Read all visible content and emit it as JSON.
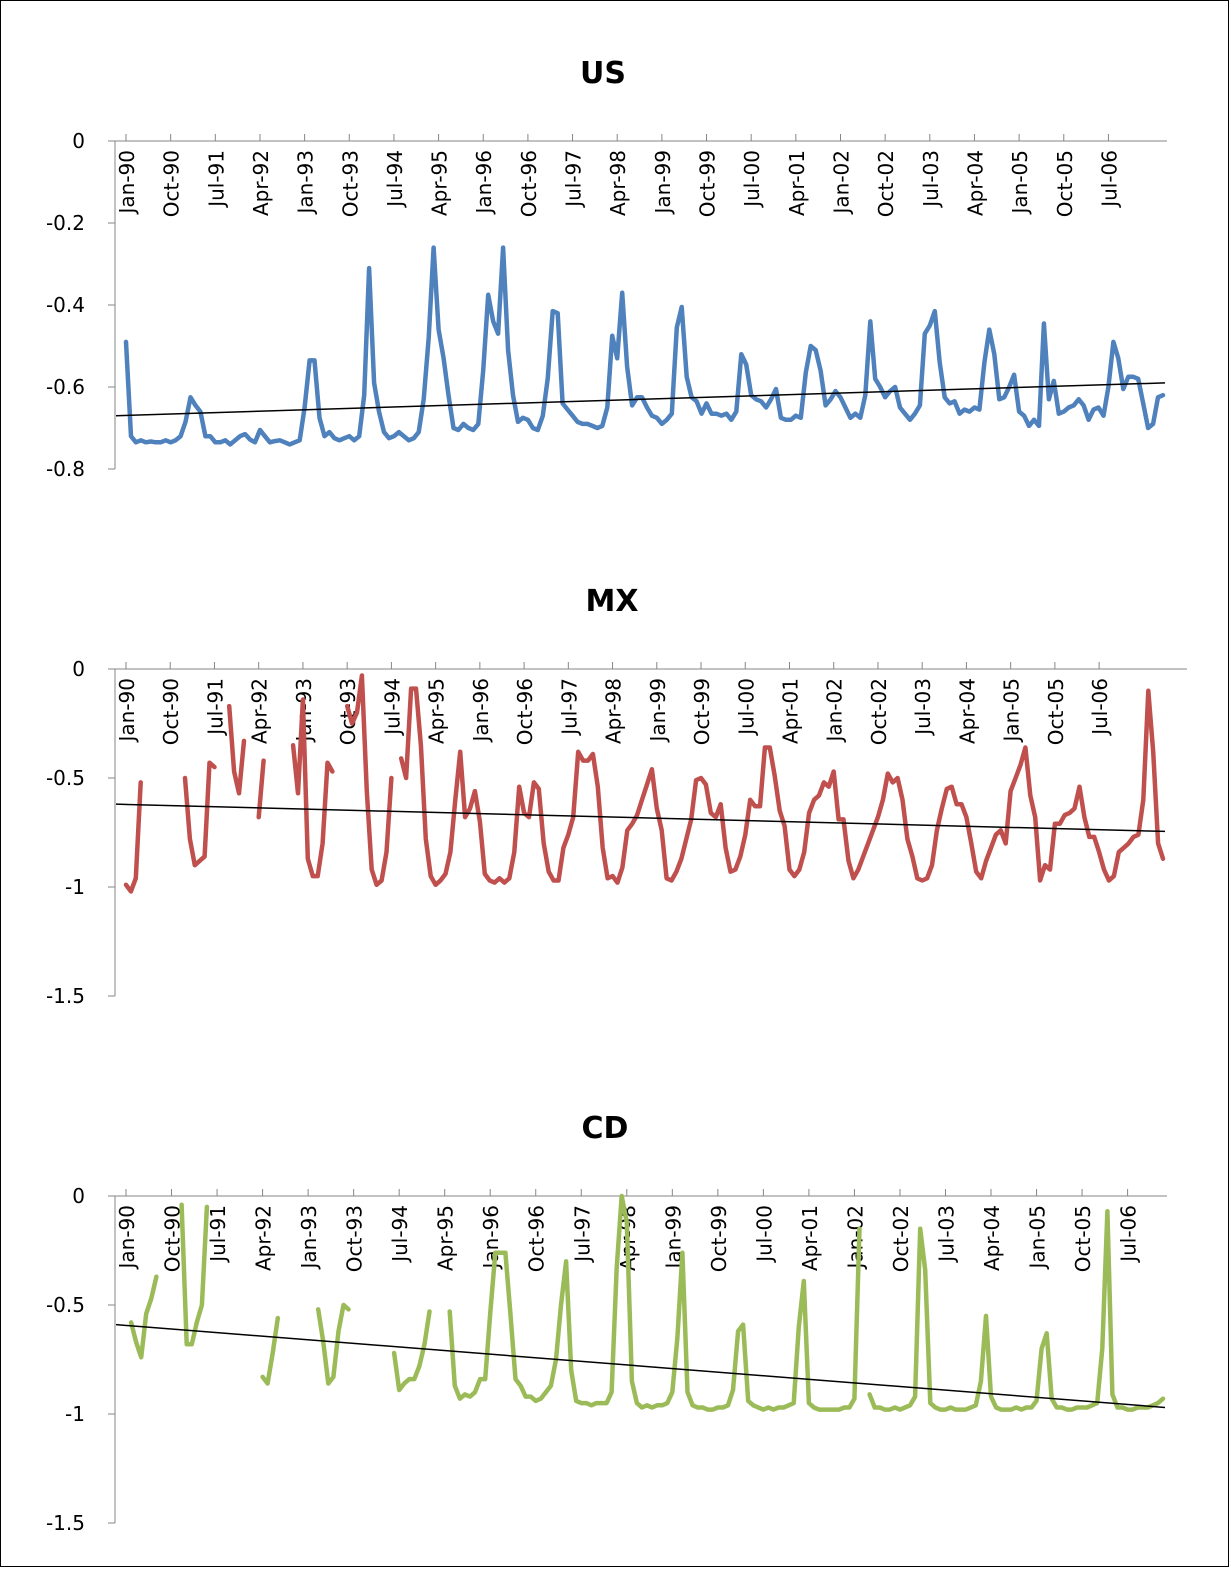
{
  "x_labels": [
    "Jan-90",
    "Oct-90",
    "Jul-91",
    "Apr-92",
    "Jan-93",
    "Oct-93",
    "Jul-94",
    "Apr-95",
    "Jan-96",
    "Oct-96",
    "Jul-97",
    "Apr-98",
    "Jan-99",
    "Oct-99",
    "Jul-00",
    "Apr-01",
    "Jan-02",
    "Oct-02",
    "Jul-03",
    "Apr-04",
    "Jan-05",
    "Oct-05",
    "Jul-06"
  ],
  "chart_data": [
    {
      "type": "line",
      "title": "US",
      "color": "#4F81BD",
      "ylim": [
        -0.8,
        0
      ],
      "yticks": [
        0,
        -0.2,
        -0.4,
        -0.6,
        -0.8
      ],
      "ytick_labels": [
        "0",
        "-0.2",
        "-0.4",
        "-0.6",
        "-0.8"
      ],
      "x_range": [
        "Jan-90",
        "Dec-06"
      ],
      "trend": [
        -0.67,
        -0.59
      ],
      "values": [
        -0.49,
        -0.72,
        -0.735,
        -0.73,
        -0.735,
        -0.733,
        -0.735,
        -0.735,
        -0.73,
        -0.735,
        -0.73,
        -0.72,
        -0.685,
        -0.625,
        -0.645,
        -0.66,
        -0.72,
        -0.72,
        -0.735,
        -0.735,
        -0.73,
        -0.74,
        -0.73,
        -0.72,
        -0.715,
        -0.728,
        -0.735,
        -0.705,
        -0.72,
        -0.735,
        -0.732,
        -0.73,
        -0.735,
        -0.74,
        -0.735,
        -0.73,
        -0.65,
        -0.535,
        -0.535,
        -0.675,
        -0.72,
        -0.71,
        -0.725,
        -0.73,
        -0.725,
        -0.72,
        -0.73,
        -0.72,
        -0.62,
        -0.31,
        -0.59,
        -0.66,
        -0.71,
        -0.725,
        -0.72,
        -0.71,
        -0.72,
        -0.73,
        -0.725,
        -0.71,
        -0.63,
        -0.48,
        -0.26,
        -0.46,
        -0.53,
        -0.62,
        -0.7,
        -0.705,
        -0.69,
        -0.7,
        -0.705,
        -0.69,
        -0.56,
        -0.375,
        -0.44,
        -0.47,
        -0.26,
        -0.51,
        -0.62,
        -0.685,
        -0.675,
        -0.68,
        -0.7,
        -0.705,
        -0.67,
        -0.58,
        -0.415,
        -0.42,
        -0.64,
        -0.655,
        -0.67,
        -0.685,
        -0.69,
        -0.69,
        -0.695,
        -0.7,
        -0.695,
        -0.65,
        -0.475,
        -0.53,
        -0.37,
        -0.55,
        -0.645,
        -0.625,
        -0.625,
        -0.65,
        -0.67,
        -0.675,
        -0.69,
        -0.68,
        -0.665,
        -0.455,
        -0.405,
        -0.575,
        -0.625,
        -0.635,
        -0.665,
        -0.64,
        -0.665,
        -0.665,
        -0.67,
        -0.665,
        -0.68,
        -0.66,
        -0.52,
        -0.545,
        -0.62,
        -0.63,
        -0.635,
        -0.65,
        -0.63,
        -0.605,
        -0.675,
        -0.68,
        -0.68,
        -0.67,
        -0.675,
        -0.565,
        -0.5,
        -0.51,
        -0.56,
        -0.645,
        -0.63,
        -0.61,
        -0.625,
        -0.65,
        -0.675,
        -0.665,
        -0.675,
        -0.62,
        -0.44,
        -0.58,
        -0.6,
        -0.625,
        -0.61,
        -0.6,
        -0.65,
        -0.665,
        -0.68,
        -0.665,
        -0.645,
        -0.47,
        -0.45,
        -0.415,
        -0.54,
        -0.625,
        -0.64,
        -0.635,
        -0.665,
        -0.655,
        -0.66,
        -0.65,
        -0.655,
        -0.54,
        -0.46,
        -0.52,
        -0.63,
        -0.625,
        -0.6,
        -0.57,
        -0.66,
        -0.67,
        -0.695,
        -0.68,
        -0.695,
        -0.445,
        -0.63,
        -0.585,
        -0.665,
        -0.66,
        -0.65,
        -0.645,
        -0.63,
        -0.645,
        -0.68,
        -0.655,
        -0.65,
        -0.67,
        -0.6,
        -0.49,
        -0.53,
        -0.605,
        -0.575,
        -0.575,
        -0.58,
        -0.64,
        -0.7,
        -0.69,
        -0.625,
        -0.62
      ]
    },
    {
      "type": "line",
      "title": "MX",
      "color": "#C0504D",
      "ylim": [
        -1.5,
        0
      ],
      "yticks": [
        0,
        -0.5,
        -1,
        -1.5
      ],
      "ytick_labels": [
        "0",
        "-0.5",
        "-1",
        "-1.5"
      ],
      "x_range": [
        "Jan-90",
        "Dec-06"
      ],
      "trend": [
        -0.62,
        -0.745
      ],
      "values": [
        -0.99,
        -1.02,
        -0.96,
        -0.52,
        null,
        null,
        null,
        null,
        null,
        null,
        null,
        null,
        -0.5,
        -0.78,
        -0.9,
        -0.88,
        -0.86,
        -0.43,
        -0.45,
        null,
        null,
        -0.17,
        -0.47,
        -0.57,
        -0.33,
        null,
        null,
        -0.68,
        -0.42,
        null,
        null,
        null,
        -0.15,
        null,
        -0.35,
        -0.57,
        -0.14,
        -0.87,
        -0.95,
        -0.95,
        -0.8,
        -0.43,
        -0.47,
        null,
        null,
        -0.17,
        -0.25,
        -0.2,
        -0.03,
        -0.56,
        -0.92,
        -0.99,
        -0.97,
        -0.84,
        -0.5,
        null,
        -0.41,
        -0.5,
        -0.09,
        -0.09,
        -0.35,
        -0.78,
        -0.95,
        -0.99,
        -0.97,
        -0.94,
        -0.84,
        -0.6,
        -0.38,
        -0.68,
        -0.64,
        -0.56,
        -0.7,
        -0.94,
        -0.97,
        -0.98,
        -0.96,
        -0.98,
        -0.96,
        -0.84,
        -0.54,
        -0.66,
        -0.68,
        -0.52,
        -0.55,
        -0.8,
        -0.93,
        -0.97,
        -0.97,
        -0.82,
        -0.76,
        -0.68,
        -0.38,
        -0.42,
        -0.42,
        -0.39,
        -0.54,
        -0.82,
        -0.96,
        -0.95,
        -0.98,
        -0.91,
        -0.74,
        -0.71,
        -0.67,
        -0.6,
        -0.53,
        -0.46,
        -0.64,
        -0.74,
        -0.96,
        -0.97,
        -0.93,
        -0.87,
        -0.78,
        -0.69,
        -0.51,
        -0.5,
        -0.53,
        -0.66,
        -0.68,
        -0.62,
        -0.82,
        -0.93,
        -0.92,
        -0.86,
        -0.76,
        -0.6,
        -0.63,
        -0.63,
        -0.36,
        -0.36,
        -0.49,
        -0.65,
        -0.72,
        -0.92,
        -0.95,
        -0.92,
        -0.84,
        -0.66,
        -0.6,
        -0.58,
        -0.52,
        -0.54,
        -0.47,
        -0.69,
        -0.69,
        -0.88,
        -0.96,
        -0.92,
        -0.86,
        -0.8,
        -0.74,
        -0.68,
        -0.6,
        -0.48,
        -0.52,
        -0.5,
        -0.6,
        -0.78,
        -0.86,
        -0.96,
        -0.97,
        -0.96,
        -0.9,
        -0.74,
        -0.64,
        -0.55,
        -0.54,
        -0.62,
        -0.62,
        -0.68,
        -0.8,
        -0.93,
        -0.96,
        -0.88,
        -0.82,
        -0.76,
        -0.74,
        -0.8,
        -0.56,
        -0.5,
        -0.44,
        -0.36,
        -0.58,
        -0.68,
        -0.97,
        -0.9,
        -0.92,
        -0.71,
        -0.71,
        -0.67,
        -0.66,
        -0.64,
        -0.54,
        -0.68,
        -0.77,
        -0.77,
        -0.84,
        -0.92,
        -0.97,
        -0.95,
        -0.84,
        -0.82,
        -0.8,
        -0.77,
        -0.76,
        -0.6,
        -0.1,
        -0.38,
        -0.8,
        -0.87
      ]
    },
    {
      "type": "line",
      "title": "CD",
      "color": "#9BBB59",
      "ylim": [
        -1.5,
        0
      ],
      "yticks": [
        0,
        -0.5,
        -1,
        -1.5
      ],
      "ytick_labels": [
        "0",
        "-0.5",
        "-1",
        "-1.5"
      ],
      "x_range": [
        "Jan-90",
        "Dec-06"
      ],
      "trend": [
        -0.59,
        -0.97
      ],
      "values": [
        null,
        -0.58,
        -0.67,
        -0.74,
        -0.54,
        -0.47,
        -0.37,
        null,
        null,
        null,
        null,
        -0.04,
        -0.68,
        -0.68,
        -0.58,
        -0.5,
        -0.05,
        null,
        null,
        null,
        null,
        null,
        null,
        null,
        null,
        null,
        null,
        -0.83,
        -0.86,
        -0.72,
        -0.56,
        null,
        null,
        null,
        null,
        null,
        null,
        null,
        -0.52,
        -0.67,
        -0.86,
        -0.83,
        -0.62,
        -0.5,
        -0.52,
        null,
        null,
        null,
        null,
        null,
        null,
        null,
        null,
        -0.72,
        -0.89,
        -0.86,
        -0.84,
        -0.84,
        -0.78,
        -0.68,
        -0.53,
        null,
        null,
        null,
        -0.53,
        -0.87,
        -0.93,
        -0.91,
        -0.92,
        -0.9,
        -0.84,
        -0.84,
        -0.54,
        -0.26,
        -0.26,
        -0.26,
        -0.54,
        -0.84,
        -0.87,
        -0.92,
        -0.92,
        -0.94,
        -0.93,
        -0.9,
        -0.87,
        -0.75,
        -0.5,
        -0.3,
        -0.8,
        -0.94,
        -0.95,
        -0.95,
        -0.96,
        -0.95,
        -0.95,
        -0.95,
        -0.9,
        -0.33,
        -0.0,
        -0.12,
        -0.85,
        -0.95,
        -0.97,
        -0.96,
        -0.97,
        -0.96,
        -0.96,
        -0.95,
        -0.9,
        -0.65,
        -0.26,
        -0.9,
        -0.96,
        -0.97,
        -0.97,
        -0.98,
        -0.98,
        -0.97,
        -0.97,
        -0.96,
        -0.89,
        -0.62,
        -0.59,
        -0.94,
        -0.96,
        -0.97,
        -0.98,
        -0.97,
        -0.98,
        -0.97,
        -0.97,
        -0.96,
        -0.95,
        -0.6,
        -0.39,
        -0.95,
        -0.97,
        -0.98,
        -0.98,
        -0.98,
        -0.98,
        -0.98,
        -0.97,
        -0.97,
        -0.93,
        -0.15,
        null,
        -0.91,
        -0.97,
        -0.97,
        -0.98,
        -0.98,
        -0.97,
        -0.98,
        -0.97,
        -0.96,
        -0.92,
        -0.15,
        -0.34,
        -0.95,
        -0.97,
        -0.98,
        -0.98,
        -0.97,
        -0.98,
        -0.98,
        -0.98,
        -0.97,
        -0.96,
        -0.85,
        -0.55,
        -0.92,
        -0.97,
        -0.98,
        -0.98,
        -0.98,
        -0.97,
        -0.98,
        -0.97,
        -0.97,
        -0.94,
        -0.7,
        -0.63,
        -0.93,
        -0.97,
        -0.97,
        -0.98,
        -0.98,
        -0.97,
        -0.97,
        -0.97,
        -0.96,
        -0.95,
        -0.7,
        -0.07,
        -0.91,
        -0.97,
        -0.97,
        -0.98,
        -0.98,
        -0.97,
        -0.97,
        -0.97,
        -0.96,
        -0.95,
        -0.93
      ]
    }
  ]
}
